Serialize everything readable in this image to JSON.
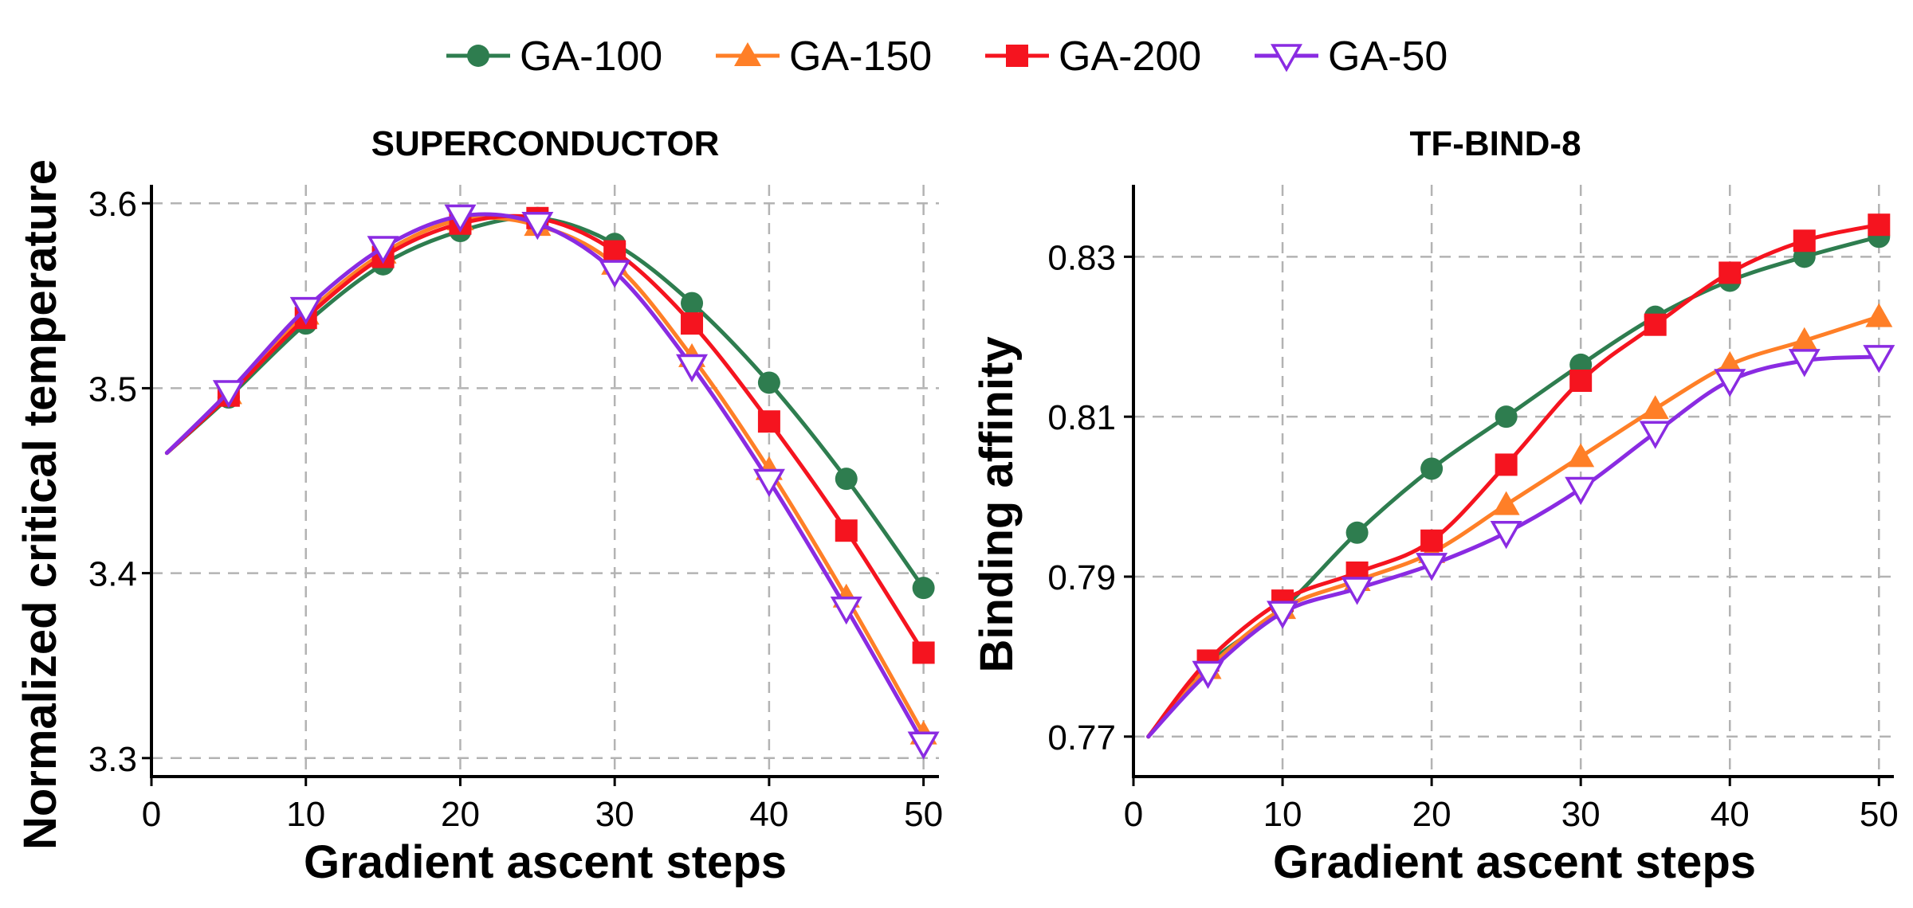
{
  "colors": {
    "GA-100": "#2e7d4f",
    "GA-150": "#ff7f27",
    "GA-200": "#f5141f",
    "GA-50": "#8a2be2"
  },
  "legend": {
    "placement": "top-center",
    "entries": [
      {
        "name": "GA-100",
        "marker": "circle"
      },
      {
        "name": "GA-150",
        "marker": "triangle-up"
      },
      {
        "name": "GA-200",
        "marker": "square"
      },
      {
        "name": "GA-50",
        "marker": "triangle-down-open"
      }
    ]
  },
  "chart_data": [
    {
      "type": "line",
      "title": "SUPERCONDUCTOR",
      "xlabel": "Gradient ascent steps",
      "ylabel": "Normalized critical temperature",
      "xlim": [
        0,
        51
      ],
      "ylim": [
        3.29,
        3.61
      ],
      "xticks": [
        0,
        10,
        20,
        30,
        40,
        50
      ],
      "yticks": [
        3.3,
        3.4,
        3.5,
        3.6
      ],
      "ytick_labels": [
        "3.3",
        "3.4",
        "3.5",
        "3.6"
      ],
      "grid": true,
      "series": [
        {
          "name": "GA-100",
          "marker": "circle",
          "x": [
            1,
            5,
            10,
            15,
            20,
            25,
            30,
            35,
            40,
            45,
            50
          ],
          "y": [
            3.465,
            3.495,
            3.535,
            3.567,
            3.585,
            3.592,
            3.578,
            3.546,
            3.503,
            3.451,
            3.392
          ]
        },
        {
          "name": "GA-150",
          "marker": "triangle-up",
          "x": [
            1,
            5,
            10,
            15,
            20,
            25,
            30,
            35,
            40,
            45,
            50
          ],
          "y": [
            3.465,
            3.497,
            3.54,
            3.573,
            3.591,
            3.588,
            3.567,
            3.517,
            3.456,
            3.387,
            3.313
          ]
        },
        {
          "name": "GA-200",
          "marker": "square",
          "x": [
            1,
            5,
            10,
            15,
            20,
            25,
            30,
            35,
            40,
            45,
            50
          ],
          "y": [
            3.465,
            3.496,
            3.538,
            3.571,
            3.589,
            3.592,
            3.574,
            3.535,
            3.482,
            3.423,
            3.357
          ]
        },
        {
          "name": "GA-50",
          "marker": "triangle-down-open",
          "x": [
            1,
            5,
            10,
            15,
            20,
            25,
            30,
            35,
            40,
            45,
            50
          ],
          "y": [
            3.465,
            3.498,
            3.543,
            3.576,
            3.593,
            3.589,
            3.563,
            3.512,
            3.45,
            3.381,
            3.308
          ]
        }
      ]
    },
    {
      "type": "line",
      "title": "TF-BIND-8",
      "xlabel": "Gradient ascent steps",
      "ylabel": "Binding affinity",
      "xlim": [
        0,
        51
      ],
      "ylim": [
        0.765,
        0.839
      ],
      "xticks": [
        0,
        10,
        20,
        30,
        40,
        50
      ],
      "yticks": [
        0.77,
        0.79,
        0.81,
        0.83
      ],
      "ytick_labels": [
        "0.77",
        "0.79",
        "0.81",
        "0.83"
      ],
      "grid": true,
      "series": [
        {
          "name": "GA-100",
          "marker": "circle",
          "x": [
            1,
            5,
            10,
            15,
            20,
            25,
            30,
            35,
            40,
            45,
            50
          ],
          "y": [
            0.77,
            0.779,
            0.786,
            0.7955,
            0.8035,
            0.81,
            0.8165,
            0.8225,
            0.827,
            0.83,
            0.8325
          ]
        },
        {
          "name": "GA-150",
          "marker": "triangle-up",
          "x": [
            1,
            5,
            10,
            15,
            20,
            25,
            30,
            35,
            40,
            45,
            50
          ],
          "y": [
            0.77,
            0.7785,
            0.786,
            0.7895,
            0.793,
            0.799,
            0.805,
            0.811,
            0.8165,
            0.8195,
            0.8225
          ]
        },
        {
          "name": "GA-200",
          "marker": "square",
          "x": [
            1,
            5,
            10,
            15,
            20,
            25,
            30,
            35,
            40,
            45,
            50
          ],
          "y": [
            0.77,
            0.7795,
            0.787,
            0.7905,
            0.7945,
            0.804,
            0.8145,
            0.8215,
            0.828,
            0.832,
            0.834
          ]
        },
        {
          "name": "GA-50",
          "marker": "triangle-down-open",
          "x": [
            1,
            5,
            10,
            15,
            20,
            25,
            30,
            35,
            40,
            45,
            50
          ],
          "y": [
            0.77,
            0.778,
            0.7855,
            0.7885,
            0.7915,
            0.7955,
            0.801,
            0.808,
            0.8145,
            0.817,
            0.8175
          ]
        }
      ]
    }
  ]
}
